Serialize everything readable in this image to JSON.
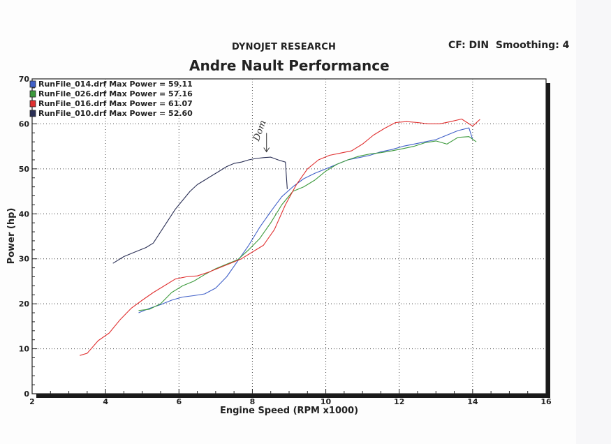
{
  "header": {
    "brand": "DYNOJET RESEARCH",
    "settings": "CF: DIN  Smoothing: 4",
    "title": "Andre Nault Performance"
  },
  "chart_data": {
    "type": "line",
    "title": "Andre Nault Performance",
    "xlabel": "Engine Speed (RPM x1000)",
    "ylabel": "Power (hp)",
    "xlim": [
      2,
      16
    ],
    "ylim": [
      0,
      70
    ],
    "x_ticks": [
      2,
      4,
      6,
      8,
      10,
      12,
      14,
      16
    ],
    "y_ticks": [
      0,
      10,
      20,
      30,
      40,
      50,
      60,
      70
    ],
    "grid": true,
    "legend_position": "top-left",
    "annotation": {
      "text": "Dom",
      "x": 8.5,
      "y": 53
    },
    "series": [
      {
        "name": "RunFile_014.drf Max Power = 59.11",
        "color": "#4060c8",
        "x": [
          4.9,
          5.2,
          5.5,
          5.8,
          6.1,
          6.4,
          6.7,
          7.0,
          7.3,
          7.6,
          7.9,
          8.2,
          8.5,
          8.8,
          9.1,
          9.4,
          9.7,
          10.0,
          10.3,
          10.6,
          10.9,
          11.2,
          11.5,
          11.8,
          12.1,
          12.4,
          12.7,
          13.0,
          13.3,
          13.6,
          13.9,
          14.0
        ],
        "y": [
          18.0,
          19.0,
          19.8,
          20.8,
          21.5,
          21.8,
          22.2,
          23.5,
          26.0,
          29.5,
          33.0,
          37.0,
          40.5,
          43.8,
          46.0,
          47.8,
          49.0,
          50.0,
          51.0,
          52.0,
          52.5,
          53.0,
          53.8,
          54.3,
          55.0,
          55.5,
          56.0,
          56.5,
          57.5,
          58.5,
          59.1,
          56.5
        ]
      },
      {
        "name": "RunFile_026.drf Max Power = 57.16",
        "color": "#3c9a3c",
        "x": [
          4.9,
          5.2,
          5.5,
          5.8,
          6.1,
          6.4,
          6.7,
          7.0,
          7.3,
          7.6,
          7.9,
          8.2,
          8.5,
          8.8,
          9.1,
          9.4,
          9.7,
          10.0,
          10.3,
          10.6,
          10.9,
          11.2,
          11.5,
          11.8,
          12.1,
          12.4,
          12.7,
          13.0,
          13.3,
          13.6,
          13.9,
          14.1
        ],
        "y": [
          18.5,
          18.8,
          20.0,
          22.5,
          24.0,
          25.0,
          26.5,
          27.8,
          28.8,
          29.8,
          32.0,
          34.5,
          38.0,
          42.0,
          45.0,
          46.0,
          47.5,
          49.5,
          51.0,
          52.0,
          52.8,
          53.3,
          53.6,
          54.0,
          54.5,
          55.0,
          55.8,
          56.2,
          55.5,
          57.0,
          57.16,
          56.0
        ]
      },
      {
        "name": "RunFile_016.drf Max Power = 61.07",
        "color": "#e03030",
        "x": [
          3.3,
          3.5,
          3.8,
          4.1,
          4.4,
          4.7,
          5.0,
          5.3,
          5.6,
          5.9,
          6.2,
          6.5,
          6.8,
          7.1,
          7.4,
          7.7,
          8.0,
          8.3,
          8.6,
          8.9,
          9.2,
          9.5,
          9.8,
          10.1,
          10.4,
          10.7,
          11.0,
          11.3,
          11.6,
          11.9,
          12.2,
          12.5,
          12.8,
          13.1,
          13.4,
          13.7,
          14.0,
          14.2
        ],
        "y": [
          8.5,
          9.0,
          11.8,
          13.5,
          16.5,
          19.0,
          20.8,
          22.5,
          24.0,
          25.5,
          26.0,
          26.2,
          27.0,
          28.0,
          29.0,
          30.0,
          31.5,
          33.0,
          36.5,
          42.0,
          46.5,
          50.0,
          52.0,
          53.0,
          53.5,
          54.0,
          55.5,
          57.5,
          59.0,
          60.3,
          60.5,
          60.3,
          60.0,
          60.0,
          60.5,
          61.07,
          59.5,
          61.0
        ]
      },
      {
        "name": "RunFile_010.drf Max Power = 52.60",
        "color": "#2a2f55",
        "x": [
          4.2,
          4.5,
          4.8,
          5.1,
          5.3,
          5.5,
          5.7,
          5.9,
          6.1,
          6.3,
          6.5,
          6.7,
          6.9,
          7.1,
          7.3,
          7.5,
          7.7,
          7.9,
          8.1,
          8.3,
          8.5,
          8.7,
          8.9,
          8.95
        ],
        "y": [
          29.0,
          30.5,
          31.5,
          32.5,
          33.5,
          36.0,
          38.5,
          41.0,
          43.0,
          45.0,
          46.5,
          47.5,
          48.5,
          49.5,
          50.5,
          51.2,
          51.5,
          52.0,
          52.3,
          52.5,
          52.6,
          52.0,
          51.5,
          45.5
        ]
      }
    ]
  }
}
